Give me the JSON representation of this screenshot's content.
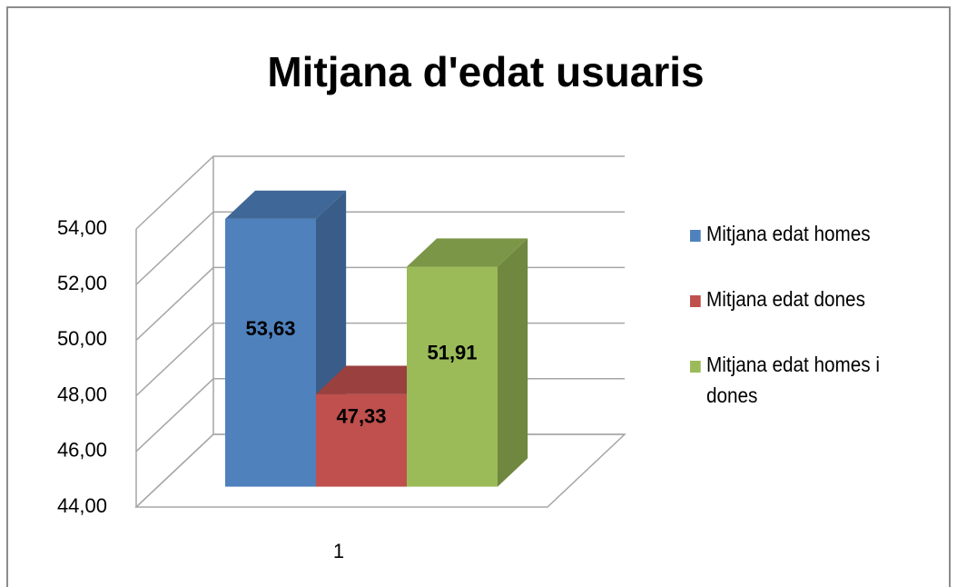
{
  "chart_data": {
    "type": "bar",
    "title": "Mitjana d'edat usuaris",
    "categories": [
      "1"
    ],
    "series": [
      {
        "name": "Mitjana edat homes",
        "color": "#4f81bd",
        "values": [
          53.63
        ],
        "value_labels": [
          "53,63"
        ]
      },
      {
        "name": "Mitjana edat dones",
        "color": "#c0504d",
        "values": [
          47.33
        ],
        "value_labels": [
          "47,33"
        ]
      },
      {
        "name": "Mitjana edat homes i dones",
        "color": "#9bbb59",
        "values": [
          51.91
        ],
        "value_labels": [
          "51,91"
        ]
      }
    ],
    "ylim": [
      44,
      54
    ],
    "yticks": [
      {
        "value": 44,
        "label": "44,00"
      },
      {
        "value": 46,
        "label": "46,00"
      },
      {
        "value": 48,
        "label": "48,00"
      },
      {
        "value": 50,
        "label": "50,00"
      },
      {
        "value": 52,
        "label": "52,00"
      },
      {
        "value": 54,
        "label": "54,00"
      }
    ],
    "grid": true,
    "legend": "right"
  }
}
